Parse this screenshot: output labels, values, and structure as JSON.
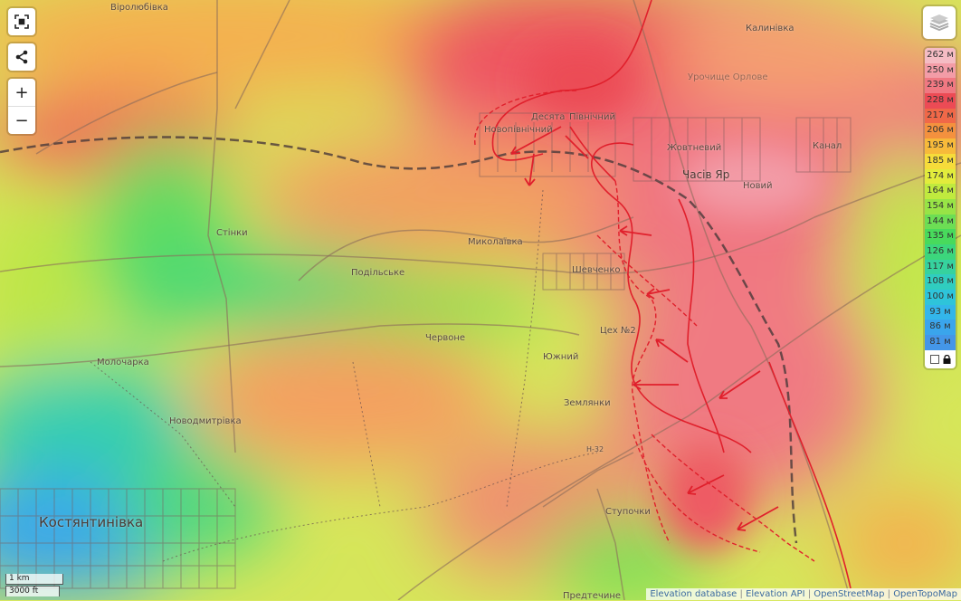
{
  "controls": {
    "fullscreen_icon": "fullscreen-icon",
    "share_icon": "share-icon",
    "zoom_in": "+",
    "zoom_out": "−"
  },
  "layers_icon": "layers-icon",
  "legend": {
    "items": [
      {
        "label": "262 м",
        "color": "#f5bcc4"
      },
      {
        "label": "250 м",
        "color": "#f39ca7"
      },
      {
        "label": "239 м",
        "color": "#f07882"
      },
      {
        "label": "228 м",
        "color": "#ec4b55"
      },
      {
        "label": "217 м",
        "color": "#f06848"
      },
      {
        "label": "206 м",
        "color": "#f4913e"
      },
      {
        "label": "195 м",
        "color": "#f7ba3a"
      },
      {
        "label": "185 м",
        "color": "#f6dc3a"
      },
      {
        "label": "174 м",
        "color": "#e2ec3c"
      },
      {
        "label": "164 м",
        "color": "#c0ea3e"
      },
      {
        "label": "154 м",
        "color": "#98e446"
      },
      {
        "label": "144 м",
        "color": "#6cde54"
      },
      {
        "label": "135 м",
        "color": "#48da5c"
      },
      {
        "label": "126 м",
        "color": "#3cd67c"
      },
      {
        "label": "117 м",
        "color": "#36d29e"
      },
      {
        "label": "108 м",
        "color": "#30cdbf"
      },
      {
        "label": "100 м",
        "color": "#2ec4da"
      },
      {
        "label": "93 м",
        "color": "#33b6ea"
      },
      {
        "label": "86 м",
        "color": "#3aa5ec"
      },
      {
        "label": "81 м",
        "color": "#4496e8"
      }
    ],
    "lock_icon": "lock-icon"
  },
  "places": {
    "viroliubivka": "Віролюбівка",
    "kalynivka": "Калинівка",
    "uroch": "Урочище Орлове",
    "desiata": "Десята",
    "pivnichnyi": "Північний",
    "novopivnichnyi": "Новопівнічний",
    "zhovtnevyi": "Жовтневий",
    "chasiv_yar": "Часів Яр",
    "novyi": "Новий",
    "kanal": "Канал",
    "stinky": "Стінки",
    "mykolaivka": "Миколаївка",
    "podilske": "Подільське",
    "shevchenko": "Шевченко",
    "chervone": "Червоне",
    "tsekh2": "Цех №2",
    "yuzhnyi": "Южний",
    "molocharka": "Молочарка",
    "novodmytrivka": "Новодмитрівка",
    "zemlianky": "Землянки",
    "road": "Н-32",
    "kostiantynivka": "Костянтинівка",
    "stupochky": "Ступочки",
    "predtechyne": "Предтечине"
  },
  "scale": {
    "metric": "1 km",
    "imperial": "3000 ft"
  },
  "attribution": [
    "Elevation database",
    "Elevation API",
    "OpenStreetMap",
    "OpenTopoMap"
  ],
  "front_color": "#e0202c"
}
